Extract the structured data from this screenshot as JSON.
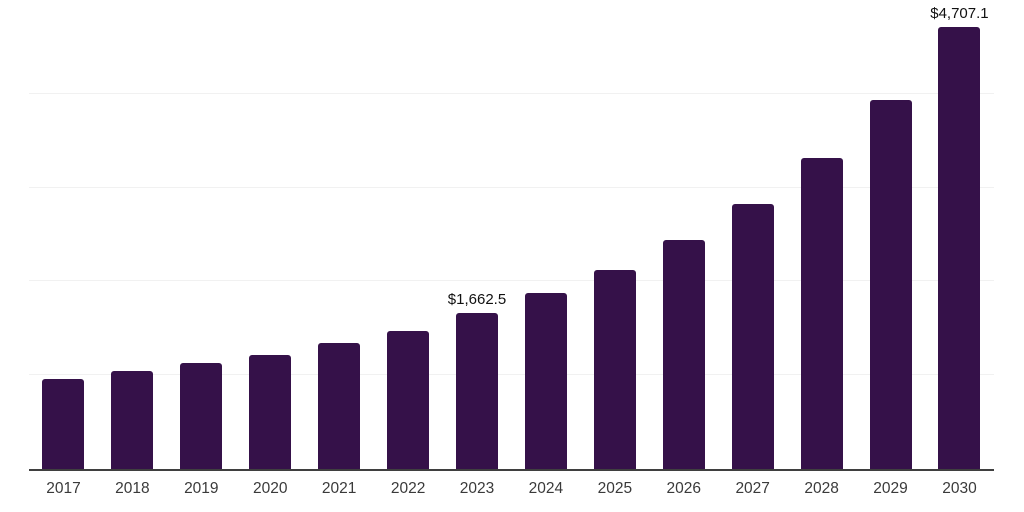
{
  "chart_data": {
    "type": "bar",
    "categories": [
      "2017",
      "2018",
      "2019",
      "2020",
      "2021",
      "2022",
      "2023",
      "2024",
      "2025",
      "2026",
      "2027",
      "2028",
      "2029",
      "2030"
    ],
    "values": [
      960,
      1050,
      1125,
      1215,
      1345,
      1470,
      1662.5,
      1875,
      2125,
      2440,
      2830,
      3315,
      3930,
      4707.1
    ],
    "point_labels": [
      "",
      "",
      "",
      "",
      "",
      "",
      "$1,662.5",
      "",
      "",
      "",
      "",
      "",
      "",
      "$4,707.1"
    ],
    "title": "",
    "xlabel": "",
    "ylabel": "",
    "ylim": [
      0,
      5000
    ],
    "gridline_values": [
      1000,
      2000,
      3000,
      4000,
      5000
    ],
    "grid": true,
    "legend": false,
    "colors": {
      "bar": "#351149",
      "axis_line": "#3f3f3f",
      "gridline": "#f1f1f1",
      "tick_label": "#3a3a3a",
      "data_label": "#111111",
      "background": "#ffffff"
    }
  }
}
